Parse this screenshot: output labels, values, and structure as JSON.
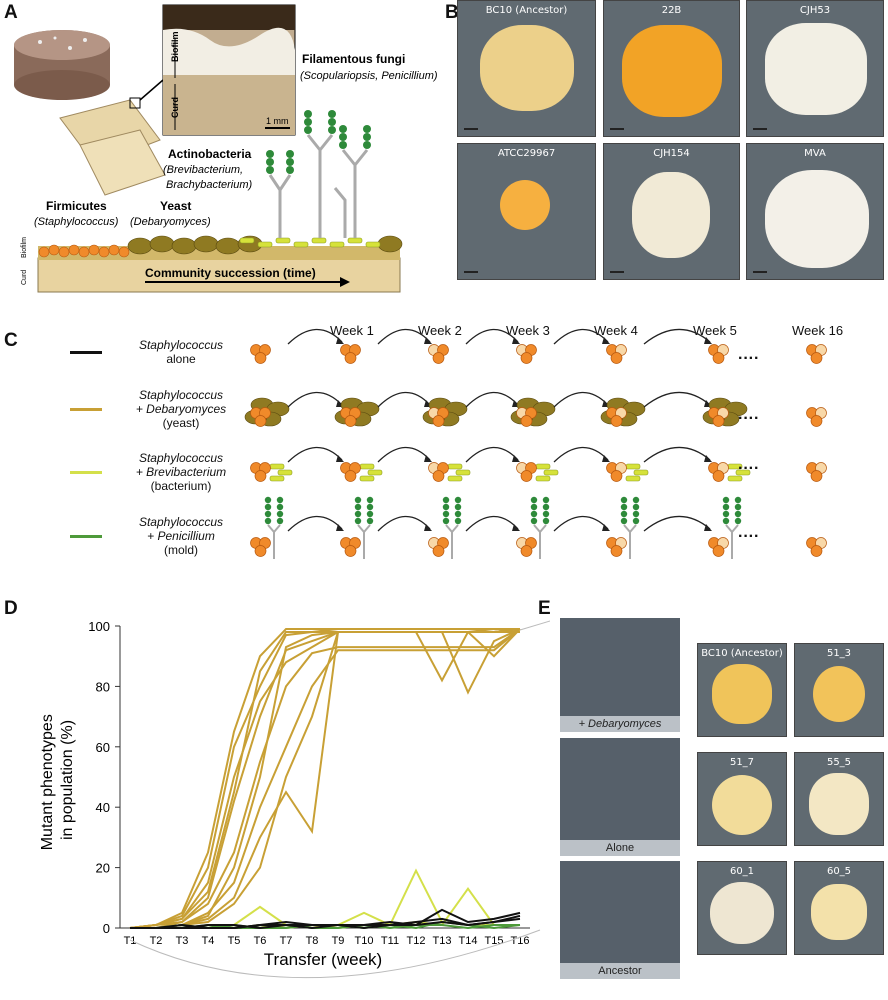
{
  "panels": {
    "a": "A",
    "b": "B",
    "c": "C",
    "d": "D",
    "e": "E"
  },
  "panelA": {
    "biofilm": "Biofilm",
    "curd": "Curd",
    "scale": "1 mm",
    "fungi_title": "Filamentous fungi",
    "fungi_sub": "(Scopulariopsis, Penicillium)",
    "actino_title": "Actinobacteria",
    "actino_sub1": "(Brevibacterium,",
    "actino_sub2": "Brachybacterium)",
    "yeast_title": "Yeast",
    "yeast_sub": "(Debaryomyces)",
    "firm_title": "Firmicutes",
    "firm_sub": "(Staphylococcus)",
    "succession": "Community succession (time)",
    "side_biofilm": "Biofilm",
    "side_curd": "Curd"
  },
  "panelB": {
    "tiles": [
      "BC10 (Ancestor)",
      "22B",
      "CJH53",
      "ATCC29967",
      "CJH154",
      "MVA"
    ]
  },
  "panelC": {
    "weeks": [
      "Week 1",
      "Week 2",
      "Week 3",
      "Week 4",
      "Week 5",
      "Week 16"
    ],
    "dots": "····",
    "legend": [
      {
        "line1": "Staphylococcus",
        "line2": "alone",
        "line3": "",
        "color": "#111111"
      },
      {
        "line1": "Staphylococcus",
        "line2": "+ Debaryomyces",
        "line3": "(yeast)",
        "color": "#c8a035"
      },
      {
        "line1": "Staphylococcus",
        "line2": "+ Brevibacterium",
        "line3": "(bacterium)",
        "color": "#d4e04a"
      },
      {
        "line1": "Staphylococcus",
        "line2": "+ Penicillium",
        "line3": "(mold)",
        "color": "#4e9a3a"
      }
    ]
  },
  "panelE": {
    "plates": [
      "+ Debaryomyces",
      "Alone",
      "Ancestor"
    ],
    "colonies": [
      "BC10 (Ancestor)",
      "51_3",
      "51_7",
      "55_5",
      "60_1",
      "60_5"
    ]
  },
  "chart_data": {
    "type": "line",
    "title": "",
    "xlabel": "Transfer (week)",
    "ylabel": "Mutant phenotypes in population (%)",
    "ylim": [
      0,
      100
    ],
    "yticks": [
      0,
      20,
      40,
      60,
      80,
      100
    ],
    "categories": [
      "T1",
      "T2",
      "T3",
      "T4",
      "T5",
      "T6",
      "T7",
      "T8",
      "T9",
      "T10",
      "T11",
      "T12",
      "T13",
      "T14",
      "T15",
      "T16"
    ],
    "series": [
      {
        "group": "yeast",
        "color": "#c8a035",
        "values": [
          0,
          1,
          3,
          12,
          45,
          85,
          98,
          98,
          99,
          99,
          99,
          99,
          99,
          99,
          98,
          99
        ]
      },
      {
        "group": "yeast",
        "color": "#c8a035",
        "values": [
          0,
          1,
          4,
          20,
          60,
          80,
          97,
          98,
          98,
          98,
          98,
          98,
          98,
          98,
          98,
          99
        ]
      },
      {
        "group": "yeast",
        "color": "#c8a035",
        "values": [
          0,
          1,
          5,
          25,
          65,
          90,
          99,
          99,
          99,
          99,
          99,
          99,
          99,
          99,
          99,
          99
        ]
      },
      {
        "group": "yeast",
        "color": "#c8a035",
        "values": [
          0,
          1,
          2,
          10,
          42,
          70,
          92,
          95,
          98,
          98,
          98,
          98,
          98,
          98,
          98,
          98
        ]
      },
      {
        "group": "yeast",
        "color": "#c8a035",
        "values": [
          0,
          1,
          3,
          15,
          50,
          75,
          88,
          93,
          98,
          98,
          98,
          98,
          98,
          98,
          98,
          99
        ]
      },
      {
        "group": "yeast",
        "color": "#c8a035",
        "values": [
          0,
          0,
          2,
          8,
          25,
          55,
          80,
          91,
          93,
          93,
          93,
          93,
          93,
          93,
          93,
          99
        ]
      },
      {
        "group": "yeast",
        "color": "#c8a035",
        "values": [
          0,
          0,
          1,
          5,
          15,
          40,
          60,
          80,
          92,
          92,
          92,
          92,
          92,
          92,
          92,
          99
        ]
      },
      {
        "group": "yeast",
        "color": "#c8a035",
        "values": [
          0,
          0,
          1,
          3,
          10,
          30,
          45,
          32,
          98,
          98,
          98,
          98,
          82,
          98,
          98,
          99
        ]
      },
      {
        "group": "yeast",
        "color": "#c8a035",
        "values": [
          0,
          0,
          1,
          4,
          20,
          50,
          93,
          97,
          98,
          98,
          98,
          98,
          98,
          78,
          95,
          99
        ]
      },
      {
        "group": "yeast",
        "color": "#c8a035",
        "values": [
          0,
          0,
          1,
          2,
          8,
          20,
          50,
          70,
          98,
          98,
          98,
          98,
          98,
          98,
          90,
          99
        ]
      },
      {
        "group": "bacterium",
        "color": "#d4e04a",
        "values": [
          0,
          0,
          0,
          0,
          1,
          7,
          1,
          1,
          1,
          5,
          1,
          19,
          2,
          1,
          1,
          1
        ]
      },
      {
        "group": "bacterium",
        "color": "#d4e04a",
        "values": [
          0,
          0,
          0,
          0,
          0,
          1,
          0,
          1,
          0,
          1,
          1,
          2,
          1,
          13,
          1,
          1
        ]
      },
      {
        "group": "mold",
        "color": "#4e9a3a",
        "values": [
          0,
          0,
          0,
          1,
          0,
          0,
          1,
          0,
          0,
          1,
          0,
          1,
          1,
          0,
          1,
          1
        ]
      },
      {
        "group": "mold",
        "color": "#4e9a3a",
        "values": [
          0,
          0,
          1,
          0,
          1,
          0,
          0,
          1,
          1,
          0,
          1,
          0,
          2,
          1,
          0,
          1
        ]
      },
      {
        "group": "alone",
        "color": "#111111",
        "values": [
          0,
          0,
          1,
          0,
          0,
          1,
          2,
          1,
          1,
          1,
          2,
          1,
          6,
          2,
          3,
          5
        ]
      },
      {
        "group": "alone",
        "color": "#111111",
        "values": [
          0,
          0,
          0,
          1,
          1,
          0,
          1,
          1,
          1,
          0,
          1,
          2,
          3,
          1,
          2,
          4
        ]
      },
      {
        "group": "alone",
        "color": "#111111",
        "values": [
          0,
          0,
          0,
          0,
          0,
          1,
          1,
          0,
          1,
          1,
          1,
          1,
          2,
          1,
          2,
          3
        ]
      }
    ]
  }
}
